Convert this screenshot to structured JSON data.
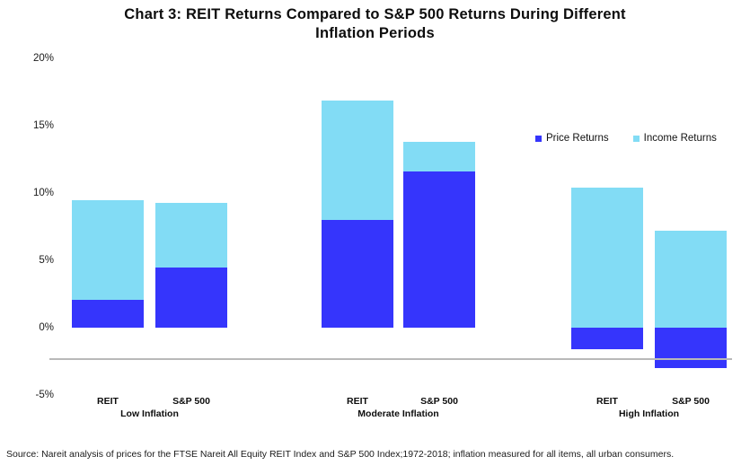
{
  "title": {
    "line1": "Chart 3: REIT Returns Compared to S&P 500 Returns During Different",
    "line2": "Inflation Periods"
  },
  "source": "Source: Nareit analysis of prices for the FTSE Nareit All Equity REIT Index and S&P 500 Index;1972-2018; inflation measured for all items, all urban consumers.",
  "colors": {
    "price_returns": "#3535fc",
    "income_returns": "#82dcf5",
    "baseline": "#b9b9b9"
  },
  "legend": {
    "items": [
      {
        "label": "Price Returns",
        "color_key": "price_returns"
      },
      {
        "label": "Income Returns",
        "color_key": "income_returns"
      }
    ]
  },
  "chart_data": {
    "type": "bar",
    "stacked": true,
    "title": "Chart 3: REIT Returns Compared to S&P 500 Returns During Different Inflation Periods",
    "xlabel": "",
    "ylabel": "",
    "ylim": [
      -5,
      20
    ],
    "grid": false,
    "legend_position": "upper-right",
    "baseline_value": -2.3,
    "unit": "%",
    "yticks": [
      {
        "label": "20%",
        "value": 20
      },
      {
        "label": "15%",
        "value": 15
      },
      {
        "label": "10%",
        "value": 10
      },
      {
        "label": "5%",
        "value": 5
      },
      {
        "label": "0%",
        "value": 0
      },
      {
        "label": "-5%",
        "value": -5
      }
    ],
    "series_names": [
      "Price Returns",
      "Income Returns"
    ],
    "groups": [
      {
        "label": "Low Inflation",
        "bars": [
          {
            "label": "REIT",
            "price_returns": 2.1,
            "income_returns": 7.4
          },
          {
            "label": "S&P 500",
            "price_returns": 4.5,
            "income_returns": 4.8
          }
        ]
      },
      {
        "label": "Moderate Inflation",
        "bars": [
          {
            "label": "REIT",
            "price_returns": 8.0,
            "income_returns": 8.9
          },
          {
            "label": "S&P 500",
            "price_returns": 11.6,
            "income_returns": 2.2
          }
        ]
      },
      {
        "label": "High Inflation",
        "bars": [
          {
            "label": "REIT",
            "price_returns": -1.6,
            "income_returns": 10.4
          },
          {
            "label": "S&P 500",
            "price_returns": -3.0,
            "income_returns": 7.2
          }
        ]
      }
    ]
  }
}
